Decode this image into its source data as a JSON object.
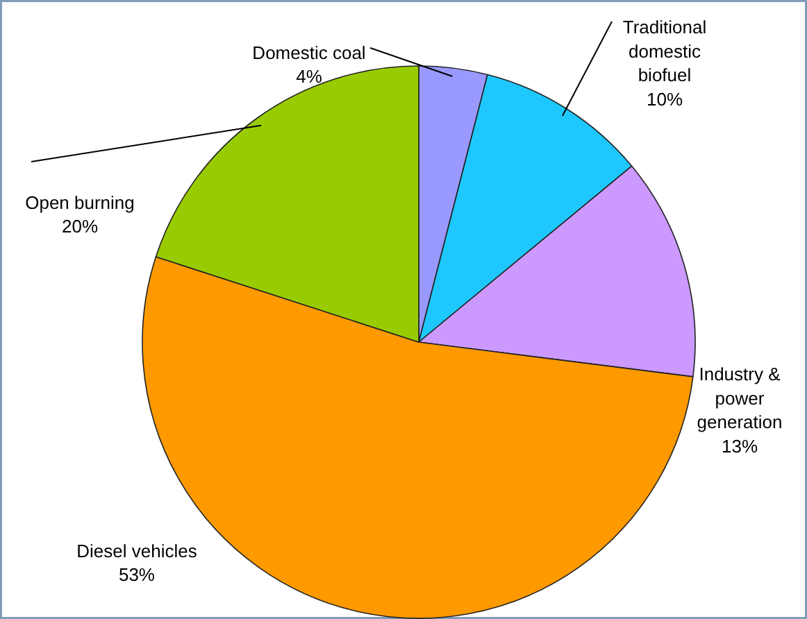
{
  "chart_data": {
    "type": "pie",
    "categories": [
      "Domestic coal",
      "Traditional\ndomestic\nbiofuel",
      "Industry &\npower\ngeneration",
      "Diesel vehicles",
      "Open burning"
    ],
    "values": [
      4,
      10,
      13,
      53,
      20
    ],
    "colors": [
      "#9999ff",
      "#1ec8ff",
      "#cc99ff",
      "#ff9900",
      "#99cc00"
    ],
    "value_labels": [
      "4%",
      "10%",
      "13%",
      "53%",
      "20%"
    ]
  }
}
